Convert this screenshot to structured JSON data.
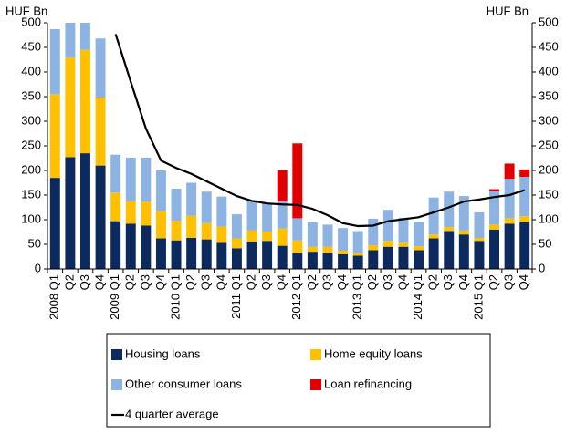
{
  "chart_data": {
    "type": "bar",
    "stacked": true,
    "y_label": "HUF Bn",
    "y2_label": "HUF Bn",
    "categories": [
      "2008 Q1",
      "Q2",
      "Q3",
      "Q4",
      "2009 Q1",
      "Q2",
      "Q3",
      "Q4",
      "2010 Q1",
      "Q2",
      "Q3",
      "Q4",
      "2011 Q1",
      "Q2",
      "Q3",
      "Q4",
      "2012 Q1",
      "Q2",
      "Q3",
      "Q4",
      "2013 Q1",
      "Q2",
      "Q3",
      "Q4",
      "2014 Q1",
      "Q2",
      "Q3",
      "Q4",
      "2015 Q1",
      "Q2",
      "Q3",
      "Q4"
    ],
    "series": [
      {
        "name": "Housing loans",
        "type": "bar",
        "color": "#0c2a5e",
        "values": [
          185,
          227,
          235,
          210,
          97,
          92,
          88,
          62,
          58,
          63,
          60,
          53,
          42,
          55,
          57,
          47,
          33,
          35,
          33,
          30,
          27,
          38,
          45,
          45,
          38,
          62,
          77,
          70,
          57,
          80,
          92,
          95
        ]
      },
      {
        "name": "Home equity loans",
        "type": "bar",
        "color": "#ffc000",
        "values": [
          170,
          203,
          210,
          138,
          58,
          46,
          49,
          56,
          40,
          45,
          33,
          33,
          20,
          23,
          19,
          35,
          25,
          10,
          12,
          7,
          6,
          10,
          12,
          8,
          8,
          8,
          8,
          8,
          6,
          10,
          11,
          12
        ]
      },
      {
        "name": "Other consumer loans",
        "type": "bar",
        "color": "#8db3e2",
        "values": [
          132,
          90,
          70,
          120,
          77,
          88,
          89,
          82,
          65,
          67,
          64,
          61,
          49,
          62,
          57,
          56,
          45,
          50,
          45,
          46,
          44,
          54,
          63,
          51,
          50,
          75,
          72,
          70,
          52,
          68,
          80,
          80
        ]
      },
      {
        "name": "Loan refinancing",
        "type": "bar",
        "color": "#e00000",
        "values": [
          0,
          0,
          0,
          0,
          0,
          0,
          0,
          0,
          0,
          0,
          0,
          0,
          0,
          0,
          0,
          62,
          152,
          0,
          0,
          0,
          0,
          0,
          0,
          0,
          0,
          0,
          0,
          0,
          0,
          4,
          31,
          15
        ]
      },
      {
        "name": "4 quarter average",
        "type": "line",
        "axis": "y2",
        "color": "#000000",
        "values": [
          null,
          null,
          null,
          null,
          477,
          380,
          285,
          220,
          205,
          193,
          178,
          163,
          148,
          138,
          133,
          131,
          130,
          122,
          109,
          93,
          87,
          88,
          97,
          101,
          105,
          115,
          125,
          137,
          141,
          146,
          150,
          160
        ]
      }
    ],
    "ylim": [
      0,
      500
    ],
    "yticks": [
      0,
      50,
      100,
      150,
      200,
      250,
      300,
      350,
      400,
      450,
      500
    ],
    "y2lim": [
      0,
      500
    ],
    "y2ticks": [
      0,
      50,
      100,
      150,
      200,
      250,
      300,
      350,
      400,
      450,
      500
    ],
    "grid": false,
    "legend": "bottom"
  }
}
